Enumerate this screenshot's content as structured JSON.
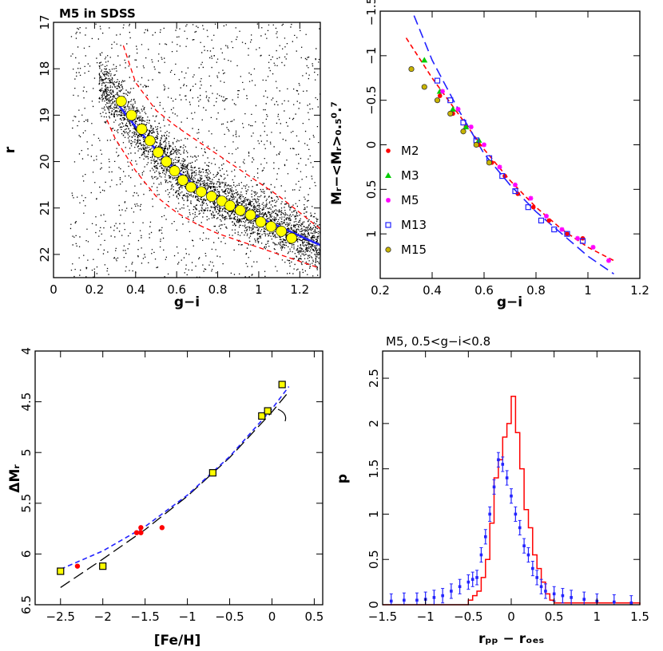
{
  "chart_data": [
    {
      "id": "p1",
      "type": "scatter",
      "title": "M5 in SDSS",
      "xlabel": "g−i",
      "ylabel": "r",
      "xlim": [
        0,
        1.3
      ],
      "ylim": [
        22.5,
        17
      ],
      "xticks": [
        0,
        0.2,
        0.4,
        0.6,
        0.8,
        1,
        1.2
      ],
      "xtick_labels": [
        "0",
        "0.2",
        "0.4",
        "0.6",
        "0.8",
        "1",
        "1.2"
      ],
      "yticks": [
        17,
        18,
        19,
        20,
        21,
        22
      ],
      "ytick_labels": [
        "17",
        "18",
        "19",
        "20",
        "21",
        "22"
      ],
      "colors": {
        "points": "#000000",
        "ridge": "#ffff00",
        "fit": "#2222ff",
        "envelope": "#ff0000"
      },
      "ridge": {
        "x": [
          0.33,
          0.38,
          0.43,
          0.47,
          0.51,
          0.55,
          0.59,
          0.63,
          0.67,
          0.72,
          0.77,
          0.82,
          0.86,
          0.91,
          0.96,
          1.01,
          1.06,
          1.11,
          1.16
        ],
        "y": [
          18.7,
          19.0,
          19.3,
          19.55,
          19.8,
          20.0,
          20.2,
          20.4,
          20.55,
          20.65,
          20.75,
          20.85,
          20.95,
          21.05,
          21.15,
          21.3,
          21.4,
          21.5,
          21.65
        ]
      },
      "fit_curve": {
        "x": [
          0.32,
          0.4,
          0.5,
          0.6,
          0.7,
          0.8,
          0.9,
          1.0,
          1.1,
          1.2,
          1.3
        ],
        "y": [
          18.8,
          19.25,
          19.75,
          20.2,
          20.55,
          20.8,
          21.0,
          21.2,
          21.4,
          21.6,
          21.8
        ]
      },
      "envelope_upper": {
        "x": [
          0.34,
          0.4,
          0.5,
          0.6,
          0.7,
          0.8,
          0.9,
          1.0,
          1.1,
          1.2,
          1.3
        ],
        "y": [
          17.5,
          18.3,
          18.9,
          19.25,
          19.55,
          19.85,
          20.15,
          20.45,
          20.75,
          21.1,
          21.45
        ]
      },
      "envelope_lower": {
        "x": [
          0.26,
          0.3,
          0.4,
          0.5,
          0.6,
          0.7,
          0.8,
          0.9,
          1.0,
          1.1,
          1.2,
          1.3
        ],
        "y": [
          19.1,
          19.5,
          20.2,
          20.75,
          21.1,
          21.35,
          21.55,
          21.7,
          21.85,
          22.0,
          22.15,
          22.3
        ]
      }
    },
    {
      "id": "p2",
      "type": "scatter",
      "title": "",
      "xlabel": "g−i",
      "ylabel": "Mᵣ−<Mᵣ>₀.₅⁰.⁷",
      "xlim": [
        0.2,
        1.2
      ],
      "ylim": [
        1.5,
        -1.5
      ],
      "xticks": [
        0.2,
        0.4,
        0.6,
        0.8,
        1,
        1.2
      ],
      "xtick_labels": [
        "0.2",
        "0.4",
        "0.6",
        "0.8",
        "1",
        "1.2"
      ],
      "yticks": [
        -1.5,
        -1,
        -0.5,
        0,
        0.5,
        1
      ],
      "ytick_labels": [
        "−1.5",
        "−1",
        "−0.5",
        "0",
        "0.5",
        "1"
      ],
      "legend_position": "center-left",
      "legend": [
        {
          "name": "M2",
          "color": "#ff0000",
          "marker": "dot"
        },
        {
          "name": "M3",
          "color": "#00cc00",
          "marker": "triangle"
        },
        {
          "name": "M5",
          "color": "#ff00ff",
          "marker": "star"
        },
        {
          "name": "M13",
          "color": "#2222ff",
          "marker": "square"
        },
        {
          "name": "M15",
          "color": "#888800",
          "marker": "circle"
        }
      ],
      "series": [
        {
          "name": "M2",
          "x": [
            0.43,
            0.48,
            0.53,
            0.58,
            0.63,
            0.68,
            0.73,
            0.79,
            0.85,
            0.92,
            0.98
          ],
          "y": [
            -0.55,
            -0.35,
            -0.2,
            0.0,
            0.2,
            0.35,
            0.55,
            0.7,
            0.85,
            1.0,
            1.05
          ]
        },
        {
          "name": "M3",
          "x": [
            0.37,
            0.43,
            0.48,
            0.53,
            0.58
          ],
          "y": [
            -0.95,
            -0.6,
            -0.4,
            -0.2,
            -0.05
          ]
        },
        {
          "name": "M5",
          "x": [
            0.44,
            0.5,
            0.55,
            0.6,
            0.66,
            0.72,
            0.78,
            0.84,
            0.9,
            0.96,
            1.02,
            1.08
          ],
          "y": [
            -0.6,
            -0.4,
            -0.2,
            0.0,
            0.25,
            0.45,
            0.6,
            0.8,
            0.95,
            1.05,
            1.15,
            1.3
          ]
        },
        {
          "name": "M13",
          "x": [
            0.42,
            0.47,
            0.52,
            0.57,
            0.62,
            0.67,
            0.72,
            0.77,
            0.82,
            0.87,
            0.92,
            0.98
          ],
          "y": [
            -0.72,
            -0.5,
            -0.25,
            -0.05,
            0.15,
            0.35,
            0.52,
            0.7,
            0.85,
            0.95,
            1.0,
            1.08
          ]
        },
        {
          "name": "M15",
          "x": [
            0.32,
            0.37,
            0.42,
            0.47,
            0.52,
            0.57,
            0.62
          ],
          "y": [
            -0.85,
            -0.65,
            -0.5,
            -0.35,
            -0.15,
            0.0,
            0.2
          ]
        }
      ],
      "fit_red": {
        "x": [
          0.3,
          0.4,
          0.5,
          0.6,
          0.7,
          0.8,
          0.9,
          1.0,
          1.1
        ],
        "y": [
          -1.2,
          -0.75,
          -0.35,
          0.05,
          0.4,
          0.7,
          0.95,
          1.15,
          1.3
        ]
      },
      "fit_blue": {
        "x": [
          0.33,
          0.4,
          0.5,
          0.6,
          0.7,
          0.8,
          0.9,
          1.0,
          1.1
        ],
        "y": [
          -1.45,
          -0.95,
          -0.4,
          0.1,
          0.45,
          0.75,
          1.0,
          1.25,
          1.45
        ]
      }
    },
    {
      "id": "p3",
      "type": "scatter",
      "title": "",
      "xlabel": "[Fe/H]",
      "ylabel": "ΔMᵣ",
      "xlim": [
        -2.8,
        0.6
      ],
      "ylim": [
        6.5,
        4
      ],
      "xticks": [
        -2.5,
        -2,
        -1.5,
        -1,
        -0.5,
        0,
        0.5
      ],
      "xtick_labels": [
        "−2.5",
        "−2",
        "−1.5",
        "−1",
        "−0.5",
        "0",
        "0.5"
      ],
      "yticks": [
        4,
        4.5,
        5,
        5.5,
        6,
        6.5
      ],
      "ytick_labels": [
        "4",
        "4.5",
        "5",
        "5.5",
        "6",
        "6.5"
      ],
      "colors": {
        "squares": "#ffff00",
        "dots": "#ff0000",
        "fit_blue": "#2222ff",
        "fit_black": "#000000"
      },
      "squares": {
        "x": [
          -2.5,
          -2.0,
          -0.7,
          -0.12,
          -0.05,
          0.12
        ],
        "y": [
          6.17,
          6.12,
          5.2,
          4.64,
          4.59,
          4.33
        ]
      },
      "dots": {
        "x": [
          -2.3,
          -1.6,
          -1.55,
          -1.55,
          -1.3
        ],
        "y": [
          6.12,
          5.79,
          5.74,
          5.79,
          5.74
        ]
      },
      "fit_blue": {
        "x": [
          -2.5,
          -2.0,
          -1.5,
          -1.0,
          -0.5,
          0.0,
          0.2
        ],
        "y": [
          6.15,
          5.97,
          5.73,
          5.42,
          5.04,
          4.57,
          4.35
        ]
      },
      "fit_black": {
        "x": [
          -2.5,
          -2.0,
          -1.5,
          -1.0,
          -0.5,
          0.0,
          0.2
        ],
        "y": [
          6.33,
          6.05,
          5.76,
          5.43,
          5.05,
          4.6,
          4.4
        ]
      }
    },
    {
      "id": "p4",
      "type": "histogram",
      "title": "M5, 0.5<g−i<0.8",
      "xlabel": "rₚₚ − rₒₑₛ",
      "ylabel": "p",
      "xlim": [
        -1.5,
        1.5
      ],
      "ylim": [
        0,
        2.8
      ],
      "xticks": [
        -1.5,
        -1,
        -0.5,
        0,
        0.5,
        1,
        1.5
      ],
      "xtick_labels": [
        "−1.5",
        "−1",
        "−0.5",
        "0",
        "0.5",
        "1",
        "1.5"
      ],
      "yticks": [
        0,
        0.5,
        1,
        1.5,
        2,
        2.5
      ],
      "ytick_labels": [
        "0",
        "0.5",
        "1",
        "1.5",
        "2",
        "2.5"
      ],
      "colors": {
        "step": "#ff0000",
        "errorbar": "#2222ff"
      },
      "step_hist": {
        "x": [
          -1.5,
          -0.5,
          -0.45,
          -0.4,
          -0.35,
          -0.3,
          -0.25,
          -0.2,
          -0.15,
          -0.1,
          -0.05,
          0.0,
          0.05,
          0.1,
          0.15,
          0.2,
          0.25,
          0.3,
          0.35,
          0.4,
          0.45,
          0.5,
          1.5
        ],
        "y": [
          0.0,
          0.05,
          0.1,
          0.15,
          0.3,
          0.5,
          0.9,
          1.4,
          1.6,
          1.85,
          2.0,
          2.3,
          1.9,
          1.5,
          1.05,
          0.85,
          0.55,
          0.4,
          0.25,
          0.12,
          0.05,
          0.02,
          0.0
        ]
      },
      "errorbar_series": {
        "x": [
          -1.4,
          -1.25,
          -1.1,
          -1.0,
          -0.9,
          -0.8,
          -0.7,
          -0.6,
          -0.5,
          -0.45,
          -0.4,
          -0.35,
          -0.3,
          -0.25,
          -0.2,
          -0.15,
          -0.1,
          -0.05,
          0.0,
          0.05,
          0.1,
          0.15,
          0.2,
          0.25,
          0.3,
          0.35,
          0.4,
          0.5,
          0.6,
          0.7,
          0.85,
          1.0,
          1.2,
          1.4
        ],
        "y": [
          0.04,
          0.05,
          0.05,
          0.06,
          0.08,
          0.1,
          0.15,
          0.2,
          0.25,
          0.28,
          0.3,
          0.55,
          0.75,
          1.0,
          1.3,
          1.6,
          1.55,
          1.4,
          1.2,
          1.0,
          0.85,
          0.65,
          0.55,
          0.4,
          0.3,
          0.2,
          0.15,
          0.12,
          0.1,
          0.08,
          0.06,
          0.04,
          0.03,
          0.02
        ],
        "yerr": 0.08
      }
    }
  ]
}
